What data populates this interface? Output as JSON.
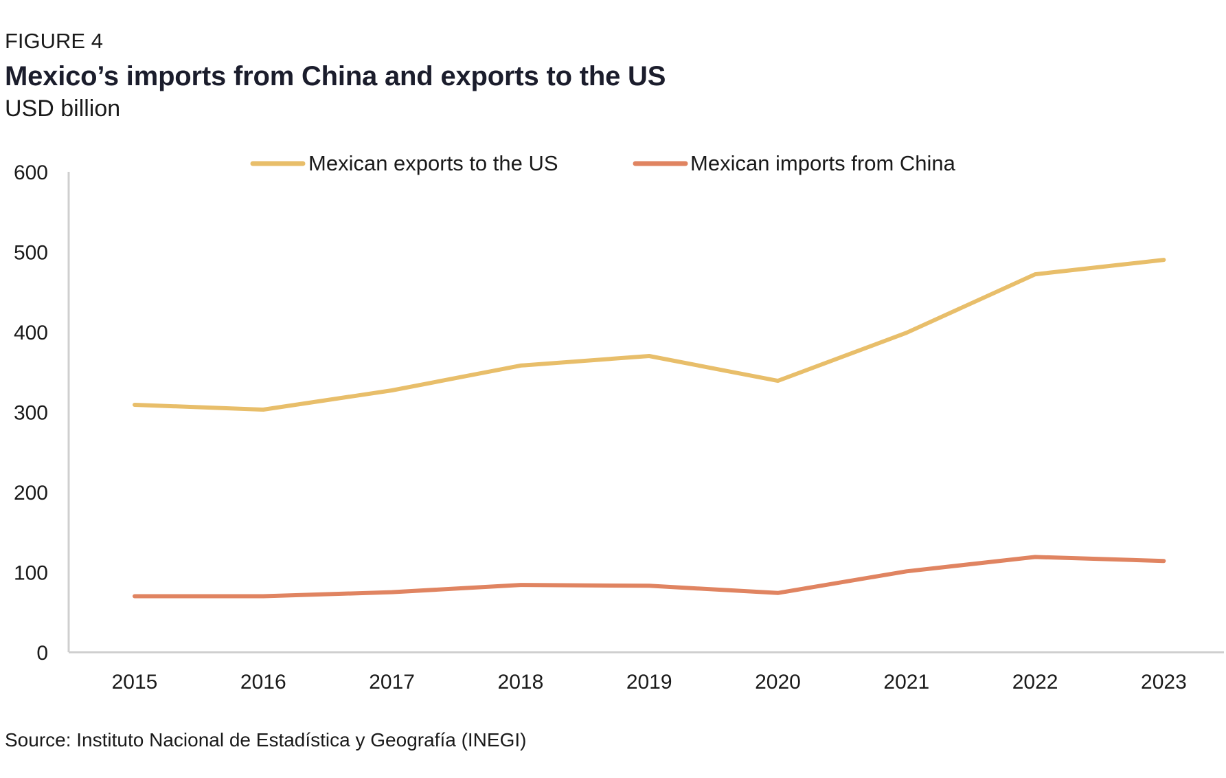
{
  "figure_label": "FIGURE 4",
  "title": "Mexico’s imports from China and exports to the US",
  "subtitle": "USD billion",
  "source": "Source: Instituto Nacional de Estadística y Geografía (INEGI)",
  "chart_data": {
    "type": "line",
    "x": [
      "2015",
      "2016",
      "2017",
      "2018",
      "2019",
      "2020",
      "2021",
      "2022",
      "2023"
    ],
    "series": [
      {
        "name": "Mexican exports to the US",
        "color": "#E8BE6A",
        "values": [
          309,
          303,
          327,
          358,
          370,
          339,
          399,
          472,
          490
        ]
      },
      {
        "name": "Mexican imports from China",
        "color": "#E08461",
        "values": [
          70,
          70,
          75,
          84,
          83,
          74,
          101,
          119,
          114
        ]
      }
    ],
    "ylim": [
      0,
      600
    ],
    "yticks": [
      "0",
      "100",
      "200",
      "300",
      "400",
      "500",
      "600"
    ],
    "grid": false,
    "legend_position": "top-center",
    "xlabel": "",
    "ylabel": ""
  }
}
